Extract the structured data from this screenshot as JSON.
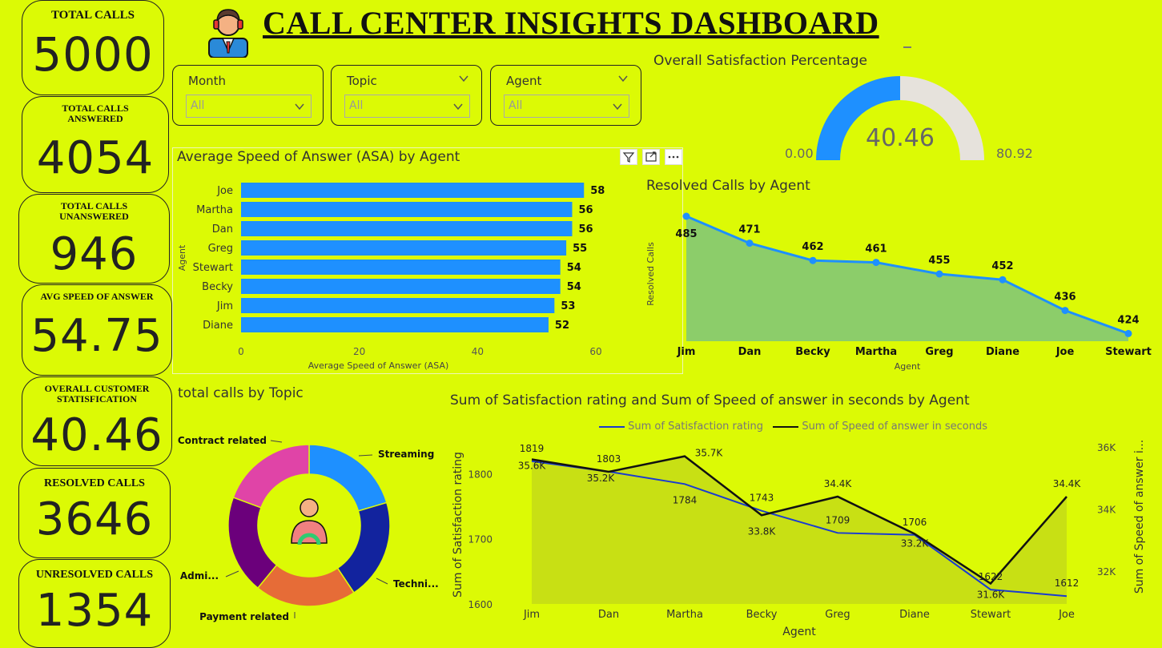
{
  "header": {
    "title": "CALL CENTER INSIGHTS DASHBOARD"
  },
  "kpis": [
    {
      "label": "TOTAL CALLS",
      "value": "5000"
    },
    {
      "label": "TOTAL CALLS ANSWERED",
      "value": "4054"
    },
    {
      "label": "TOTAL CALLS UNANSWERED",
      "value": "946"
    },
    {
      "label": "AVG SPEED OF ANSWER",
      "value": "54.75"
    },
    {
      "label": "OVERALL CUSTOMER STATISFICATION",
      "value": "40.46"
    },
    {
      "label": "RESOLVED CALLS",
      "value": "3646"
    },
    {
      "label": "UNRESOLVED CALLS",
      "value": "1354"
    }
  ],
  "slicers": [
    {
      "title": "Month",
      "value": "All"
    },
    {
      "title": "Topic",
      "value": "All"
    },
    {
      "title": "Agent",
      "value": "All"
    }
  ],
  "gauge": {
    "title": "Overall Satisfaction Percentage",
    "value": 40.46,
    "value_label": "40.46",
    "min_label": "0.00",
    "max_label": "80.92",
    "max": 80.92,
    "fill_color": "#1e90ff",
    "track_color": "#e6e2dc"
  },
  "asa_chart": {
    "title": "Average Speed of Answer (ASA) by Agent",
    "xlabel": "Average Speed of Answer (ASA)",
    "ylabel": "Agent",
    "ticks": [
      "0",
      "20",
      "40",
      "60"
    ]
  },
  "resolved_chart": {
    "title": "Resolved Calls by Agent",
    "xlabel": "Agent",
    "ylabel": "Resolved Calls"
  },
  "topic_chart": {
    "title": "total calls by Topic",
    "labels": [
      "Streaming",
      "Techni...",
      "Payment related",
      "Admi...",
      "Contract related"
    ]
  },
  "combo_chart": {
    "title": "Sum of Satisfaction rating and Sum of Speed of answer in seconds by Agent",
    "legend": [
      "Sum of Satisfaction rating",
      "Sum of Speed of answer in seconds"
    ],
    "xlabel": "Agent",
    "ylabel_left": "Sum of Satisfaction rating",
    "ylabel_right": "Sum of Speed of answer i...",
    "left_ticks": [
      "1800",
      "1700",
      "1600"
    ],
    "right_ticks": [
      "36K",
      "34K",
      "32K"
    ]
  },
  "chart_data": [
    {
      "type": "bar",
      "orientation": "horizontal",
      "title": "Average Speed of Answer (ASA) by Agent",
      "categories": [
        "Joe",
        "Martha",
        "Dan",
        "Greg",
        "Stewart",
        "Becky",
        "Jim",
        "Diane"
      ],
      "values": [
        58,
        56,
        56,
        55,
        54,
        54,
        53,
        52
      ],
      "xlim": [
        0,
        60
      ],
      "color": "#1e90ff"
    },
    {
      "type": "area",
      "title": "Resolved Calls by Agent",
      "categories": [
        "Jim",
        "Dan",
        "Becky",
        "Martha",
        "Greg",
        "Diane",
        "Joe",
        "Stewart"
      ],
      "values": [
        485,
        471,
        462,
        461,
        455,
        452,
        436,
        424
      ],
      "line_color": "#1e90ff",
      "fill_color": "#8ccd6a"
    },
    {
      "type": "pie",
      "donut": true,
      "title": "total calls by Topic",
      "categories": [
        "Streaming",
        "Techni...",
        "Payment related",
        "Admi...",
        "Contract related"
      ],
      "values": [
        1022,
        1010,
        1015,
        985,
        968
      ],
      "colors": [
        "#1e90ff",
        "#12239e",
        "#e66c37",
        "#6b007b",
        "#e044a7"
      ]
    },
    {
      "type": "line",
      "title": "Sum of Satisfaction rating and Sum of Speed of answer in seconds by Agent",
      "categories": [
        "Jim",
        "Dan",
        "Martha",
        "Becky",
        "Greg",
        "Diane",
        "Stewart",
        "Joe"
      ],
      "series": [
        {
          "name": "Sum of Satisfaction rating",
          "values": [
            1819,
            1803,
            1784,
            1743,
            1709,
            1706,
            1622,
            1612
          ],
          "color": "#1a3bd1"
        },
        {
          "name": "Sum of Speed of answer in seconds",
          "values": [
            35600,
            35200,
            35700,
            33800,
            34400,
            33200,
            31600,
            34400
          ],
          "labels": [
            "35.6K",
            "35.2K",
            "35.7K",
            "33.8K",
            "34.4K",
            "33.2K",
            "31.6K",
            "34.4K"
          ],
          "color": "#111111"
        }
      ],
      "ylim_left": [
        1600,
        1820
      ],
      "ylim_right": [
        31000,
        36500
      ]
    }
  ]
}
